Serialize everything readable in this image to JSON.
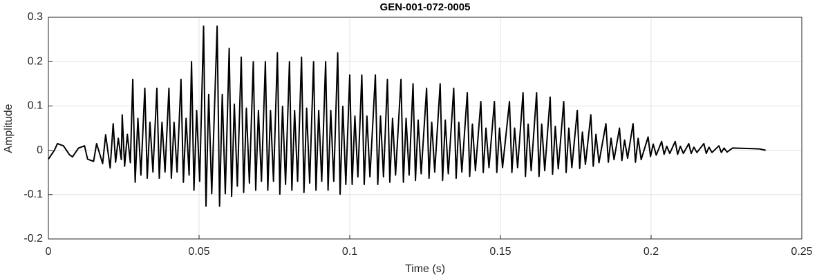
{
  "chart_data": {
    "type": "line",
    "title": "GEN-001-072-0005",
    "x_label": "Time (s)",
    "y_label": "Amplitude",
    "xlim": [
      0,
      0.25
    ],
    "ylim": [
      -0.2,
      0.3
    ],
    "xticks": [
      0,
      0.05,
      0.1,
      0.15,
      0.2,
      0.25
    ],
    "yticks": [
      -0.2,
      -0.1,
      0,
      0.1,
      0.2,
      0.3
    ],
    "grid": true,
    "x": [
      0,
      0.002,
      0.003,
      0.005,
      0.007,
      0.008,
      0.01,
      0.012,
      0.013,
      0.015,
      0.016,
      0.018,
      0.019,
      0.0205,
      0.0215,
      0.0223,
      0.0232,
      0.0242,
      0.0245,
      0.0253,
      0.0262,
      0.0272,
      0.028,
      0.0288,
      0.0297,
      0.0307,
      0.032,
      0.0328,
      0.0337,
      0.0347,
      0.036,
      0.0368,
      0.0377,
      0.0387,
      0.04,
      0.0408,
      0.0417,
      0.0427,
      0.044,
      0.0448,
      0.0457,
      0.0467,
      0.0475,
      0.0483,
      0.0492,
      0.0502,
      0.0515,
      0.0523,
      0.0532,
      0.0542,
      0.056,
      0.0568,
      0.0577,
      0.0587,
      0.06,
      0.0608,
      0.0617,
      0.0627,
      0.064,
      0.0648,
      0.0657,
      0.0667,
      0.068,
      0.0688,
      0.0697,
      0.0707,
      0.072,
      0.0728,
      0.0737,
      0.0747,
      0.076,
      0.0768,
      0.0777,
      0.0787,
      0.08,
      0.0808,
      0.0817,
      0.0827,
      0.084,
      0.0848,
      0.0857,
      0.0867,
      0.088,
      0.0888,
      0.0897,
      0.0907,
      0.092,
      0.0928,
      0.0937,
      0.0947,
      0.096,
      0.0968,
      0.0977,
      0.0987,
      0.1,
      0.1008,
      0.1017,
      0.1027,
      0.104,
      0.1048,
      0.1057,
      0.1067,
      0.1085,
      0.1093,
      0.1102,
      0.1112,
      0.1125,
      0.1133,
      0.1142,
      0.1152,
      0.117,
      0.1178,
      0.1187,
      0.1197,
      0.121,
      0.1218,
      0.1227,
      0.1237,
      0.1255,
      0.1263,
      0.1272,
      0.1282,
      0.13,
      0.1308,
      0.1317,
      0.1327,
      0.1345,
      0.1353,
      0.1362,
      0.1372,
      0.139,
      0.1398,
      0.1407,
      0.1417,
      0.1435,
      0.1443,
      0.1452,
      0.1462,
      0.148,
      0.1488,
      0.1497,
      0.1507,
      0.153,
      0.1538,
      0.1547,
      0.1557,
      0.1575,
      0.1583,
      0.1592,
      0.1602,
      0.162,
      0.1628,
      0.1637,
      0.1647,
      0.1665,
      0.1673,
      0.1682,
      0.1692,
      0.171,
      0.1718,
      0.1727,
      0.1737,
      0.1755,
      0.1763,
      0.1772,
      0.1782,
      0.18,
      0.1808,
      0.1817,
      0.1827,
      0.185,
      0.1858,
      0.1867,
      0.1877,
      0.1895,
      0.1903,
      0.1912,
      0.1922,
      0.194,
      0.1948,
      0.1957,
      0.1967,
      0.199,
      0.1998,
      0.2007,
      0.2017,
      0.2035,
      0.2043,
      0.2052,
      0.2062,
      0.208,
      0.2088,
      0.2097,
      0.2107,
      0.2125,
      0.2133,
      0.2142,
      0.2152,
      0.2175,
      0.2183,
      0.2192,
      0.2202,
      0.2225,
      0.2233,
      0.2242,
      0.2252,
      0.227,
      0.232,
      0.236,
      0.238
    ],
    "series": [
      {
        "color": "#000000",
        "values": [
          -0.02,
          0.0,
          0.015,
          0.01,
          -0.01,
          -0.015,
          0.005,
          0.01,
          -0.02,
          -0.025,
          0.015,
          -0.03,
          0.035,
          -0.04,
          0.06,
          -0.027,
          0.027,
          -0.021,
          0.08,
          -0.036,
          0.036,
          -0.028,
          0.16,
          -0.072,
          0.072,
          -0.056,
          0.14,
          -0.063,
          0.063,
          -0.049,
          0.14,
          -0.063,
          0.063,
          -0.049,
          0.14,
          -0.063,
          0.063,
          -0.049,
          0.16,
          -0.072,
          0.072,
          -0.056,
          0.2,
          -0.09,
          0.09,
          -0.07,
          0.28,
          -0.126,
          0.126,
          -0.098,
          0.28,
          -0.126,
          0.126,
          -0.098,
          0.23,
          -0.104,
          0.104,
          -0.081,
          0.21,
          -0.095,
          0.095,
          -0.074,
          0.2,
          -0.09,
          0.09,
          -0.07,
          0.2,
          -0.09,
          0.09,
          -0.07,
          0.22,
          -0.099,
          0.099,
          -0.077,
          0.2,
          -0.09,
          0.09,
          -0.07,
          0.21,
          -0.095,
          0.095,
          -0.074,
          0.2,
          -0.09,
          0.09,
          -0.07,
          0.2,
          -0.09,
          0.09,
          -0.07,
          0.22,
          -0.099,
          0.099,
          -0.077,
          0.17,
          -0.077,
          0.077,
          -0.06,
          0.17,
          -0.077,
          0.077,
          -0.06,
          0.17,
          -0.077,
          0.077,
          -0.06,
          0.16,
          -0.072,
          0.072,
          -0.056,
          0.16,
          -0.072,
          0.072,
          -0.056,
          0.15,
          -0.068,
          0.068,
          -0.053,
          0.14,
          -0.063,
          0.063,
          -0.049,
          0.15,
          -0.068,
          0.068,
          -0.053,
          0.14,
          -0.063,
          0.063,
          -0.049,
          0.13,
          -0.059,
          0.059,
          -0.046,
          0.11,
          -0.05,
          0.05,
          -0.039,
          0.11,
          -0.05,
          0.05,
          -0.039,
          0.11,
          -0.05,
          0.05,
          -0.039,
          0.13,
          -0.059,
          0.059,
          -0.046,
          0.13,
          -0.059,
          0.059,
          -0.046,
          0.12,
          -0.054,
          0.054,
          -0.042,
          0.11,
          -0.05,
          0.05,
          -0.039,
          0.09,
          -0.041,
          0.041,
          -0.032,
          0.08,
          -0.036,
          0.036,
          -0.028,
          0.06,
          -0.027,
          0.027,
          -0.021,
          0.05,
          -0.023,
          0.023,
          -0.018,
          0.06,
          -0.027,
          0.027,
          -0.021,
          0.03,
          -0.014,
          0.014,
          -0.011,
          0.02,
          -0.009,
          0.009,
          -0.007,
          0.02,
          -0.009,
          0.009,
          -0.007,
          0.015,
          -0.007,
          0.007,
          -0.005,
          0.015,
          -0.007,
          0.007,
          -0.005,
          0.01,
          -0.005,
          0.005,
          -0.004,
          0.005,
          0.004,
          0.003,
          0
        ]
      }
    ]
  }
}
